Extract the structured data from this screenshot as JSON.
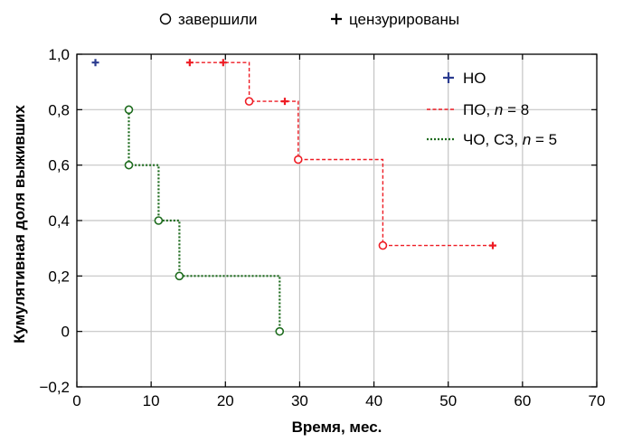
{
  "chart_data": {
    "type": "line",
    "title": "",
    "xlabel": "Время, мес.",
    "ylabel": "Кумулятивная доля выживших",
    "xlim": [
      0,
      70
    ],
    "ylim": [
      -0.2,
      1.0
    ],
    "grid": true,
    "x_ticks": [
      {
        "value": 0,
        "label": "0"
      },
      {
        "value": 10,
        "label": "10"
      },
      {
        "value": 20,
        "label": "20"
      },
      {
        "value": 30,
        "label": "30"
      },
      {
        "value": 40,
        "label": "40"
      },
      {
        "value": 50,
        "label": "50"
      },
      {
        "value": 60,
        "label": "60"
      },
      {
        "value": 70,
        "label": "70"
      }
    ],
    "y_ticks": [
      {
        "value": -0.2,
        "label": "−0,2"
      },
      {
        "value": 0,
        "label": "0"
      },
      {
        "value": 0.2,
        "label": "0,2"
      },
      {
        "value": 0.4,
        "label": "0,4"
      },
      {
        "value": 0.6,
        "label": "0,6"
      },
      {
        "value": 0.8,
        "label": "0,8"
      },
      {
        "value": 1.0,
        "label": "1,0"
      }
    ],
    "top_legend": [
      {
        "symbol": "circle",
        "label": "завершили"
      },
      {
        "symbol": "plus",
        "label": "цензурированы"
      }
    ],
    "legend_position": "top-right",
    "series": [
      {
        "name": "НО",
        "color": "#2a3b8f",
        "style": "marker-only",
        "step": [],
        "complete": [],
        "censored": [
          [
            2.5,
            0.97
          ]
        ]
      },
      {
        "name": "ПО, n = 8",
        "legend_parts": [
          "ПО, ",
          "n",
          " = 8"
        ],
        "color": "#ee1c24",
        "style": "dashed",
        "step": [
          [
            15.2,
            0.97
          ],
          [
            23.2,
            0.97
          ],
          [
            23.2,
            0.83
          ],
          [
            29.8,
            0.83
          ],
          [
            29.8,
            0.62
          ],
          [
            41.2,
            0.62
          ],
          [
            41.2,
            0.31
          ],
          [
            56.0,
            0.31
          ]
        ],
        "complete": [
          [
            23.2,
            0.83
          ],
          [
            29.8,
            0.62
          ],
          [
            41.2,
            0.31
          ]
        ],
        "censored": [
          [
            15.2,
            0.97
          ],
          [
            19.7,
            0.97
          ],
          [
            28.0,
            0.83
          ],
          [
            56.0,
            0.31
          ]
        ]
      },
      {
        "name": "ЧО, СЗ, n = 5",
        "legend_parts": [
          "ЧО, СЗ, ",
          "n",
          " = 5"
        ],
        "color": "#1d6b1d",
        "style": "dotted",
        "step": [
          [
            7.0,
            0.8
          ],
          [
            7.0,
            0.6
          ],
          [
            11.0,
            0.6
          ],
          [
            11.0,
            0.4
          ],
          [
            13.8,
            0.4
          ],
          [
            13.8,
            0.2
          ],
          [
            27.3,
            0.2
          ],
          [
            27.3,
            0.0
          ]
        ],
        "complete": [
          [
            7.0,
            0.8
          ],
          [
            7.0,
            0.6
          ],
          [
            11.0,
            0.4
          ],
          [
            13.8,
            0.2
          ],
          [
            27.3,
            0.0
          ]
        ],
        "censored": []
      }
    ]
  }
}
